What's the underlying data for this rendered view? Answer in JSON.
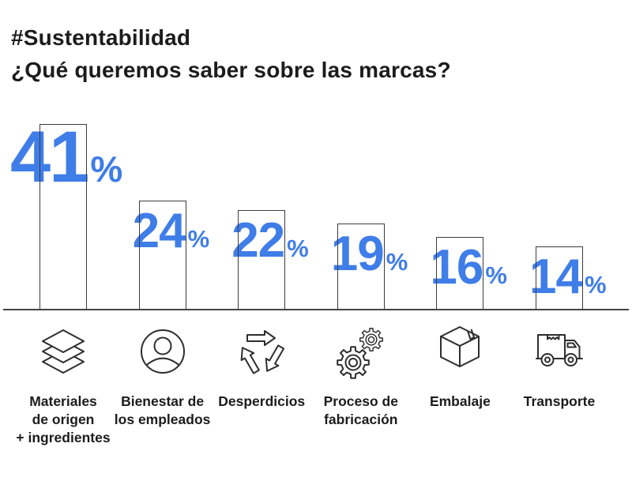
{
  "chart_data": {
    "type": "bar",
    "title": "#Sustentabilidad",
    "subtitle": "¿Qué queremos saber sobre las marcas?",
    "unit": "%",
    "categories": [
      "Materiales de origen + ingredientes",
      "Bienestar de los empleados",
      "Desperdicios",
      "Proceso de fabricación",
      "Embalaje",
      "Transporte"
    ],
    "category_lines": [
      [
        "Materiales",
        "de origen",
        "+ ingredientes"
      ],
      [
        "Bienestar de",
        "los empleados"
      ],
      [
        "Desperdicios"
      ],
      [
        "Proceso de",
        "fabricación"
      ],
      [
        "Embalaje"
      ],
      [
        "Transporte"
      ]
    ],
    "values": [
      41,
      24,
      22,
      19,
      16,
      14
    ],
    "icons": [
      "layers",
      "person",
      "recycle",
      "gears",
      "box",
      "truck"
    ],
    "colors": {
      "value_text": "#3F7DE8",
      "bar_fill": "transparent",
      "bar_outline": "#3C3C3C",
      "axis": "#454545",
      "title_text": "#1C1C1C",
      "icon_outline": "#2E2E2E",
      "background": "#FFFFFF"
    },
    "ylim": [
      0,
      45
    ],
    "grid": false,
    "legend": false,
    "orientation": "vertical",
    "value_label_position": "overlapping-bar-top"
  }
}
